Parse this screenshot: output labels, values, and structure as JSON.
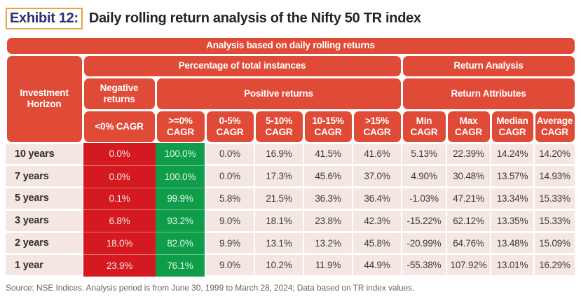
{
  "page": {
    "exhibit_label": "Exhibit 12:",
    "title": "Daily rolling return analysis of the Nifty 50 TR index",
    "source_note": "Source: NSE Indices. Analysis period is from June 30, 1999 to March 28, 2024; Data based on TR index values."
  },
  "chart_data": {
    "type": "table",
    "top_header": "Analysis based on daily rolling returns",
    "row_header": "Investment Horizon",
    "groups": {
      "percentage_of_total_instances": "Percentage of total instances",
      "return_analysis": "Return Analysis",
      "negative_returns": "Negative returns",
      "positive_returns": "Positive returns",
      "return_attributes": "Return Attributes"
    },
    "columns": [
      "<0% CAGR",
      ">=0% CAGR",
      "0-5% CAGR",
      "5-10% CAGR",
      "10-15% CAGR",
      ">15% CAGR",
      "Min CAGR",
      "Max CAGR",
      "Median CAGR",
      "Average CAGR"
    ],
    "rows": [
      {
        "horizon": "10 years",
        "cells": [
          "0.0%",
          "100.0%",
          "0.0%",
          "16.9%",
          "41.5%",
          "41.6%",
          "5.13%",
          "22.39%",
          "14.24%",
          "14.20%"
        ]
      },
      {
        "horizon": "7 years",
        "cells": [
          "0.0%",
          "100.0%",
          "0.0%",
          "17.3%",
          "45.6%",
          "37.0%",
          "4.90%",
          "30.48%",
          "13.57%",
          "14.93%"
        ]
      },
      {
        "horizon": "5 years",
        "cells": [
          "0.1%",
          "99.9%",
          "5.8%",
          "21.5%",
          "36.3%",
          "36.4%",
          "-1.03%",
          "47.21%",
          "13.34%",
          "15.33%"
        ]
      },
      {
        "horizon": "3 years",
        "cells": [
          "6.8%",
          "93.2%",
          "9.0%",
          "18.1%",
          "23.8%",
          "42.3%",
          "-15.22%",
          "62.12%",
          "13.35%",
          "15.33%"
        ]
      },
      {
        "horizon": "2 years",
        "cells": [
          "18.0%",
          "82.0%",
          "9.9%",
          "13.1%",
          "13.2%",
          "45.8%",
          "-20.99%",
          "64.76%",
          "13.48%",
          "15.09%"
        ]
      },
      {
        "horizon": "1 year",
        "cells": [
          "23.9%",
          "76.1%",
          "9.0%",
          "10.2%",
          "11.9%",
          "44.9%",
          "-55.38%",
          "107.92%",
          "13.01%",
          "16.29%"
        ]
      }
    ],
    "colors": {
      "header_red": "#E04B38",
      "negative_cell_red": "#D41920",
      "positive_cell_green": "#0F9D49",
      "row_background_pink": "#F4E7E1",
      "exhibit_border_gold": "#ECA33B",
      "exhibit_text_navy": "#2E2C72"
    }
  }
}
